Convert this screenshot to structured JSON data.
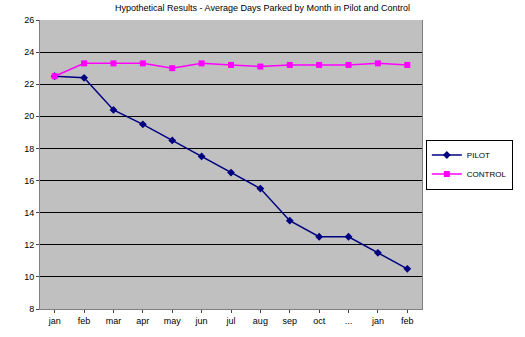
{
  "chart_data": {
    "type": "line",
    "title": "Hypothetical Results - Average Days Parked by Month in Pilot and Control",
    "categories": [
      "jan",
      "feb",
      "mar",
      "apr",
      "may",
      "jun",
      "jul",
      "aug",
      "sep",
      "oct",
      "...",
      "jan",
      "feb"
    ],
    "series": [
      {
        "name": "PILOT",
        "color": "#000080",
        "marker": "diamond",
        "line_style": "solid",
        "values": [
          22.5,
          22.4,
          20.4,
          19.5,
          18.5,
          17.5,
          16.5,
          15.5,
          13.5,
          12.5,
          12.5,
          11.5,
          10.5
        ]
      },
      {
        "name": "CONTROL",
        "color": "#ff00ff",
        "marker": "square",
        "line_style": "solid",
        "values": [
          22.5,
          23.3,
          23.3,
          23.3,
          23.0,
          23.3,
          23.2,
          23.1,
          23.2,
          23.2,
          23.2,
          23.3,
          23.2
        ]
      }
    ],
    "ylim": [
      8,
      26
    ],
    "yticks": [
      8,
      10,
      12,
      14,
      16,
      18,
      20,
      22,
      24,
      26
    ],
    "grid": true,
    "legend": "right"
  }
}
